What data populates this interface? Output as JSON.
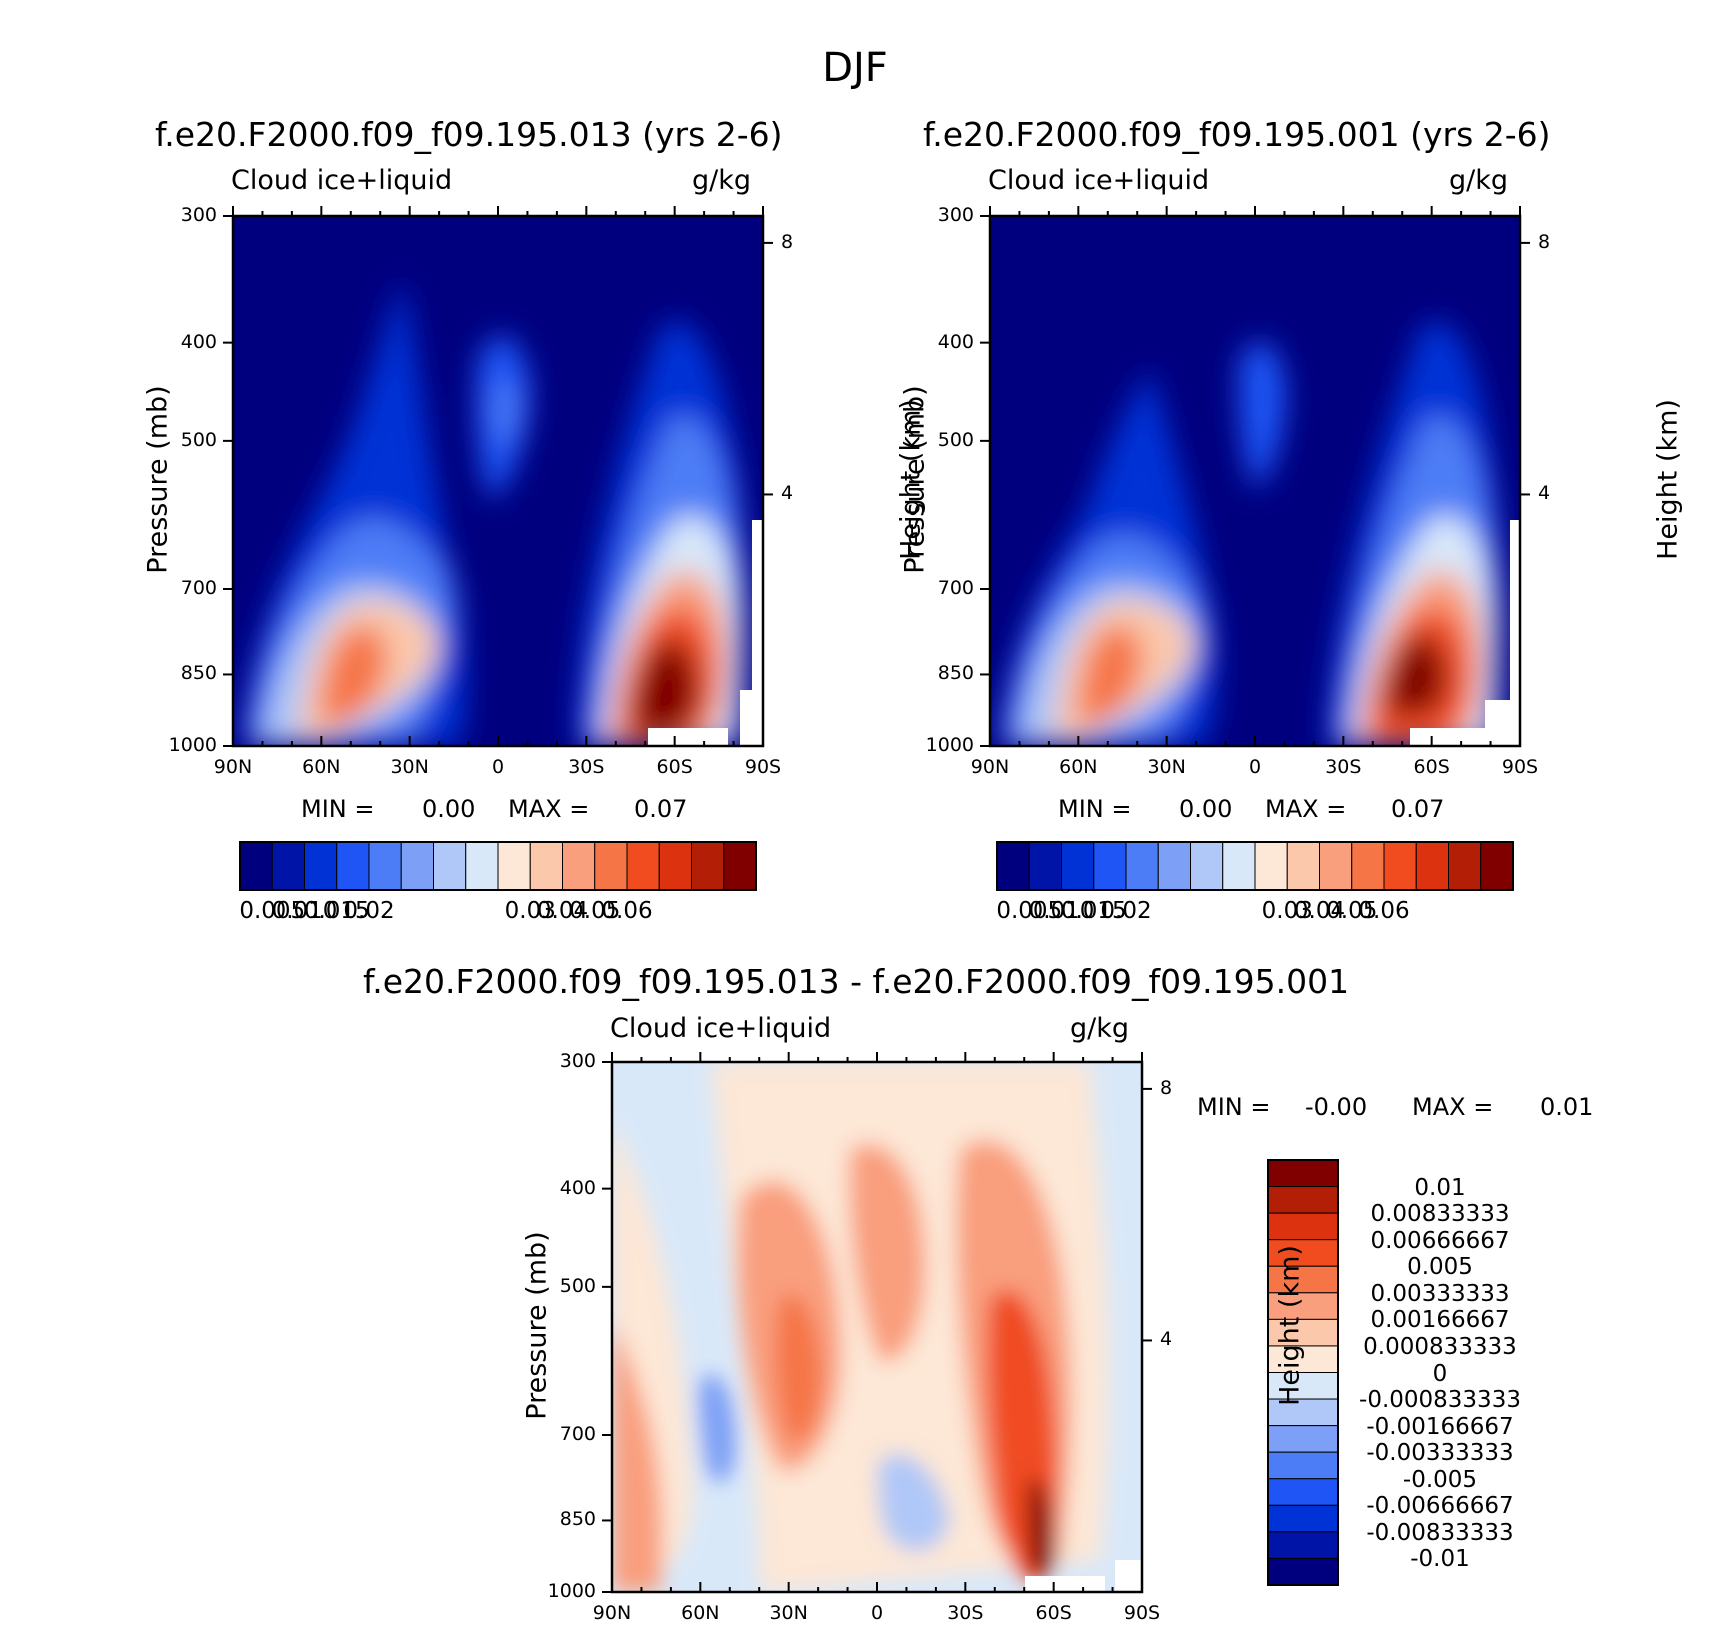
{
  "figure": {
    "title": "DJF"
  },
  "panels": [
    {
      "title": "f.e20.F2000.f09_f09.195.013 (yrs 2-6)",
      "left_label": "Cloud ice+liquid",
      "right_label": "g/kg",
      "min_label": "MIN =",
      "min_value": "0.00",
      "max_label": "MAX =",
      "max_value": "0.07"
    },
    {
      "title": "f.e20.F2000.f09_f09.195.001 (yrs 2-6)",
      "left_label": "Cloud ice+liquid",
      "right_label": "g/kg",
      "min_label": "MIN =",
      "min_value": "0.00",
      "max_label": "MAX =",
      "max_value": "0.07"
    },
    {
      "title": "f.e20.F2000.f09_f09.195.013 - f.e20.F2000.f09_f09.195.001",
      "left_label": "Cloud ice+liquid",
      "right_label": "g/kg",
      "min_label": "MIN =",
      "min_value": "-0.00",
      "max_label": "MAX =",
      "max_value": "0.01"
    }
  ],
  "axes": {
    "ylabel": "Pressure (mb)",
    "y2label": "Height (km)",
    "pressure_ticks": [
      "300",
      "400",
      "500",
      "700",
      "850",
      "1000"
    ],
    "height_ticks": [
      "8",
      "4"
    ],
    "lat_ticks": [
      "90N",
      "60N",
      "30N",
      "0",
      "30S",
      "60S",
      "90S"
    ]
  },
  "colorbar_abs": {
    "labels": [
      "0.005",
      "0.010",
      "0.015",
      "0.02",
      "0.03",
      "0.04",
      "0.05",
      "0.06"
    ],
    "colors": [
      "#00007f",
      "#0014a8",
      "#0032d6",
      "#1f54f5",
      "#4d7df6",
      "#7d9ff5",
      "#b0c8f7",
      "#d9e8f9",
      "#fde7d6",
      "#fbc8ac",
      "#f99f7e",
      "#f57546",
      "#f04c20",
      "#dc320f",
      "#b31e06",
      "#800000"
    ]
  },
  "colorbar_diff": {
    "labels": [
      "0.01",
      "0.00833333",
      "0.00666667",
      "0.005",
      "0.00333333",
      "0.00166667",
      "0.000833333",
      "0",
      "-0.000833333",
      "-0.00166667",
      "-0.00333333",
      "-0.005",
      "-0.00666667",
      "-0.00833333",
      "-0.01"
    ],
    "colors": [
      "#800000",
      "#b31e06",
      "#dc320f",
      "#f04c20",
      "#f57546",
      "#f99f7e",
      "#fbc8ac",
      "#fde7d6",
      "#d9e8f9",
      "#b0c8f7",
      "#7d9ff5",
      "#4d7df6",
      "#1f54f5",
      "#0032d6",
      "#0014a8",
      "#00007f"
    ]
  },
  "chart_data": [
    {
      "type": "heatmap",
      "title": "f.e20.F2000.f09_f09.195.013 (yrs 2-6)",
      "xlabel": "",
      "ylabel": "Pressure (mb)",
      "y2label": "Height (km)",
      "x": [
        "90N",
        "60N",
        "30N",
        "0",
        "30S",
        "60S",
        "90S"
      ],
      "xlim": [
        90,
        -90
      ],
      "ylim": [
        1000,
        300
      ],
      "ylog": true,
      "units": "g/kg",
      "features": [
        {
          "lat": 53,
          "p": 870,
          "value": 0.045
        },
        {
          "lat": -53,
          "p": 900,
          "value": 0.07
        },
        {
          "lat": 3,
          "p": 570,
          "value": 0.015
        }
      ]
    },
    {
      "type": "heatmap",
      "title": "f.e20.F2000.f09_f09.195.001 (yrs 2-6)",
      "xlabel": "",
      "ylabel": "Pressure (mb)",
      "y2label": "Height (km)",
      "x": [
        "90N",
        "60N",
        "30N",
        "0",
        "30S",
        "60S",
        "90S"
      ],
      "xlim": [
        90,
        -90
      ],
      "ylim": [
        1000,
        300
      ],
      "ylog": true,
      "units": "g/kg",
      "features": [
        {
          "lat": 55,
          "p": 860,
          "value": 0.045
        },
        {
          "lat": -54,
          "p": 880,
          "value": 0.07
        },
        {
          "lat": 3,
          "p": 560,
          "value": 0.012
        }
      ]
    },
    {
      "type": "heatmap",
      "title": "f.e20.F2000.f09_f09.195.013 - f.e20.F2000.f09_f09.195.001",
      "xlabel": "",
      "ylabel": "Pressure (mb)",
      "y2label": "Height (km)",
      "x": [
        "90N",
        "60N",
        "30N",
        "0",
        "30S",
        "60S",
        "90S"
      ],
      "xlim": [
        90,
        -90
      ],
      "ylim": [
        1000,
        300
      ],
      "ylog": true,
      "units": "g/kg",
      "features": [
        {
          "lat": -58,
          "p": 960,
          "value": 0.01
        },
        {
          "lat": -52,
          "p": 750,
          "value": 0.006
        },
        {
          "lat": 28,
          "p": 760,
          "value": 0.005
        },
        {
          "lat": 55,
          "p": 760,
          "value": -0.003
        },
        {
          "lat": -25,
          "p": 920,
          "value": -0.002
        }
      ]
    }
  ]
}
